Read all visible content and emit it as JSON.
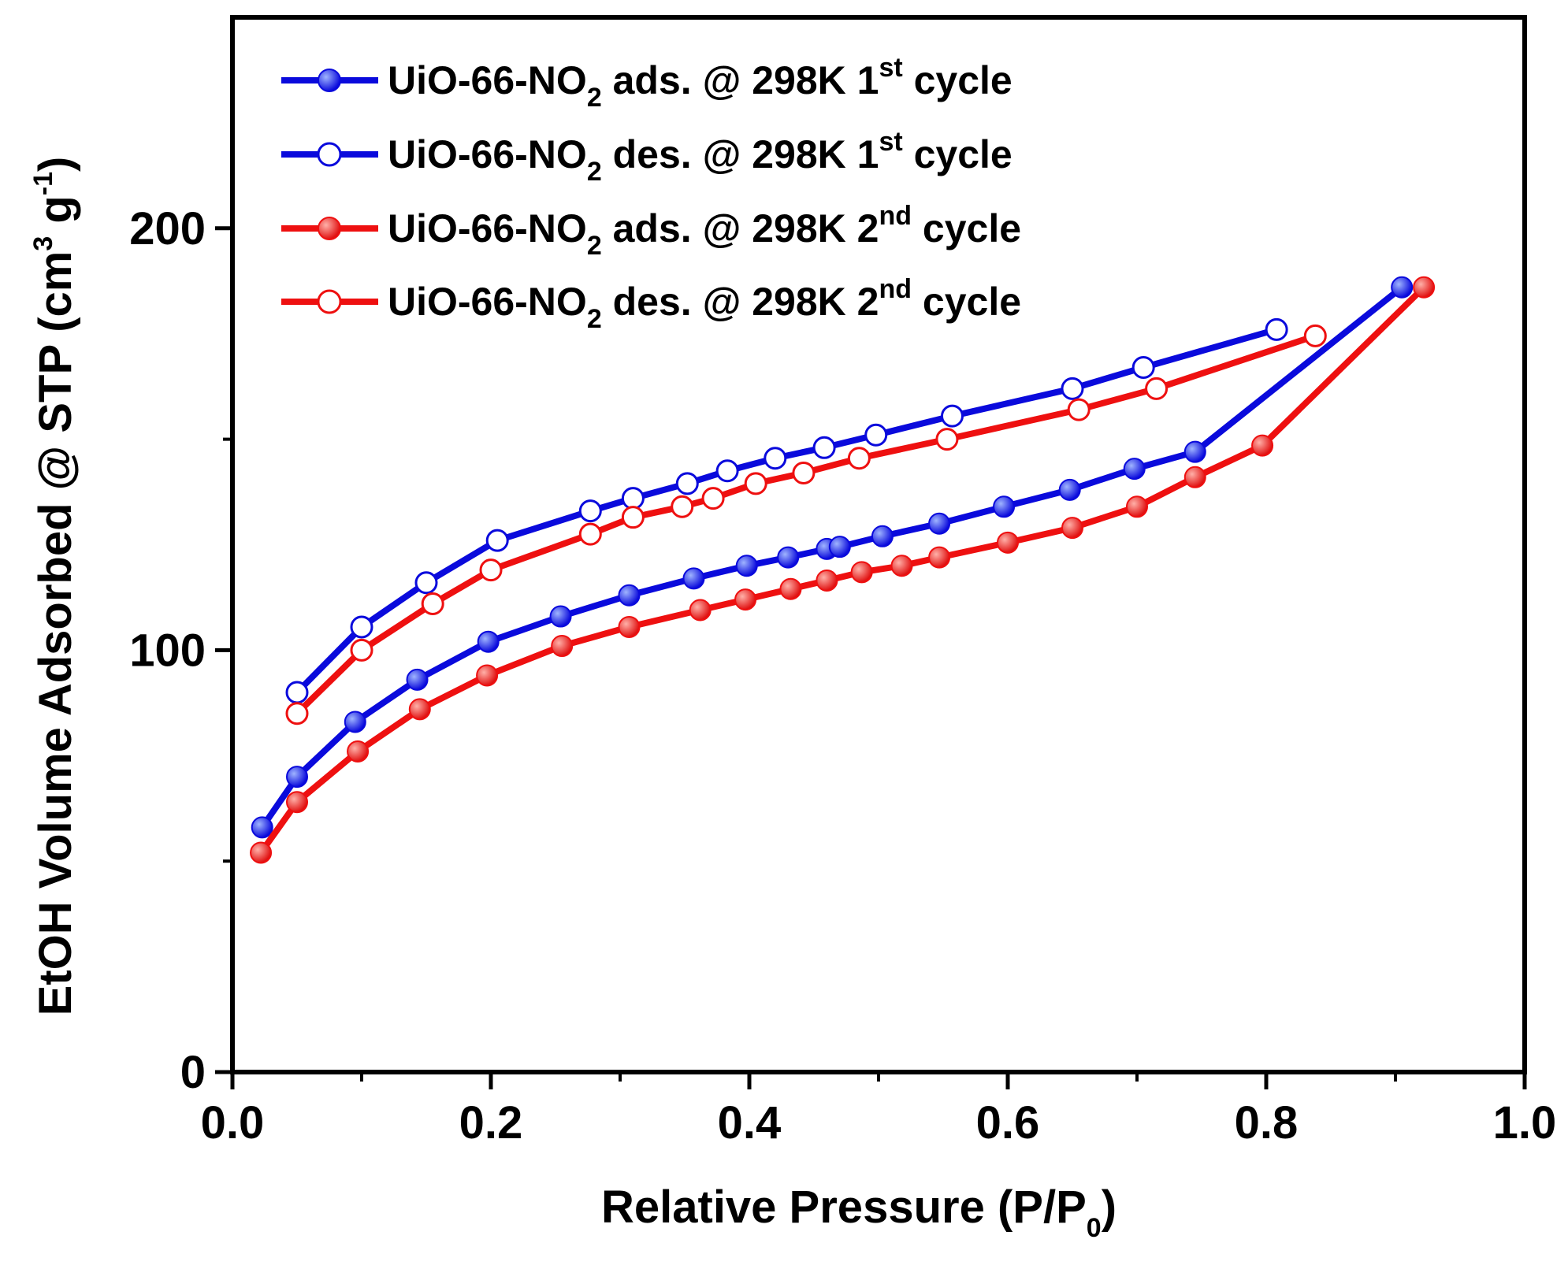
{
  "chart_data": {
    "type": "line",
    "title": "",
    "xlabel": "Relative Pressure (P/P",
    "xlabel_sub": "0",
    "xlabel_end": ")",
    "ylabel": "EtOH Volume Adsorbed @ STP (cm",
    "ylabel_sup": "3",
    "ylabel_mid": " g",
    "ylabel_sup2": "-1",
    "ylabel_end": ")",
    "xlim": [
      0.0,
      1.0
    ],
    "ylim": [
      0,
      250
    ],
    "xticks": [
      0.0,
      0.2,
      0.4,
      0.6,
      0.8,
      1.0
    ],
    "xtick_labels": [
      "0.0",
      "0.2",
      "0.4",
      "0.6",
      "0.8",
      "1.0"
    ],
    "yticks": [
      0,
      100,
      200
    ],
    "ytick_labels": [
      "0",
      "100",
      "200"
    ],
    "legend_position": "top-left",
    "series": [
      {
        "name": "UiO-66-NO2 ads. @ 298K 1st cycle",
        "legend": {
          "pre": "UiO-66-NO",
          "sub": "2",
          "mid": " ads. @ 298K 1",
          "sup": "st",
          "post": " cycle"
        },
        "color": "#0a0adc",
        "marker": "filled",
        "x": [
          0.023,
          0.05,
          0.095,
          0.143,
          0.198,
          0.254,
          0.307,
          0.357,
          0.398,
          0.43,
          0.46,
          0.47,
          0.503,
          0.547,
          0.597,
          0.648,
          0.698,
          0.745,
          0.905
        ],
        "y": [
          58,
          70,
          83,
          93,
          102,
          108,
          113,
          117,
          120,
          122,
          124,
          124.5,
          127,
          130,
          134,
          138,
          143,
          147,
          186
        ]
      },
      {
        "name": "UiO-66-NO2 des. @ 298K 1st cycle",
        "legend": {
          "pre": "UiO-66-NO",
          "sub": "2",
          "mid": " des. @ 298K 1",
          "sup": "st",
          "post": " cycle"
        },
        "color": "#0a0adc",
        "marker": "open",
        "x": [
          0.05,
          0.1,
          0.15,
          0.205,
          0.277,
          0.31,
          0.352,
          0.383,
          0.42,
          0.458,
          0.498,
          0.557,
          0.65,
          0.705,
          0.808
        ],
        "y": [
          90,
          105.5,
          116,
          126,
          133,
          136,
          139.5,
          142.5,
          145.5,
          148,
          151,
          155.5,
          162,
          167,
          176
        ]
      },
      {
        "name": "UiO-66-NO2 ads. @ 298K 2nd cycle",
        "legend": {
          "pre": "UiO-66-NO",
          "sub": "2",
          "mid": " ads. @ 298K 2",
          "sup": "nd",
          "post": " cycle"
        },
        "color": "#ee1010",
        "marker": "filled",
        "x": [
          0.022,
          0.05,
          0.097,
          0.145,
          0.197,
          0.255,
          0.307,
          0.362,
          0.397,
          0.432,
          0.46,
          0.487,
          0.518,
          0.547,
          0.6,
          0.65,
          0.7,
          0.745,
          0.797,
          0.922
        ],
        "y": [
          52,
          64,
          76,
          86,
          94,
          101,
          105.5,
          109.5,
          112,
          114.5,
          116.5,
          118.5,
          120,
          122,
          125.5,
          129,
          134,
          141,
          148.5,
          186
        ]
      },
      {
        "name": "UiO-66-NO2 des. @ 298K 2nd cycle",
        "legend": {
          "pre": "UiO-66-NO",
          "sub": "2",
          "mid": " des. @ 298K 2",
          "sup": "nd",
          "post": " cycle"
        },
        "color": "#ee1010",
        "marker": "open",
        "x": [
          0.05,
          0.1,
          0.155,
          0.2,
          0.277,
          0.31,
          0.348,
          0.372,
          0.405,
          0.442,
          0.485,
          0.553,
          0.655,
          0.715,
          0.838
        ],
        "y": [
          85,
          100,
          111,
          119,
          127.5,
          131.5,
          134,
          136,
          139.5,
          142,
          145.5,
          150,
          157,
          162,
          174.5
        ]
      }
    ]
  }
}
